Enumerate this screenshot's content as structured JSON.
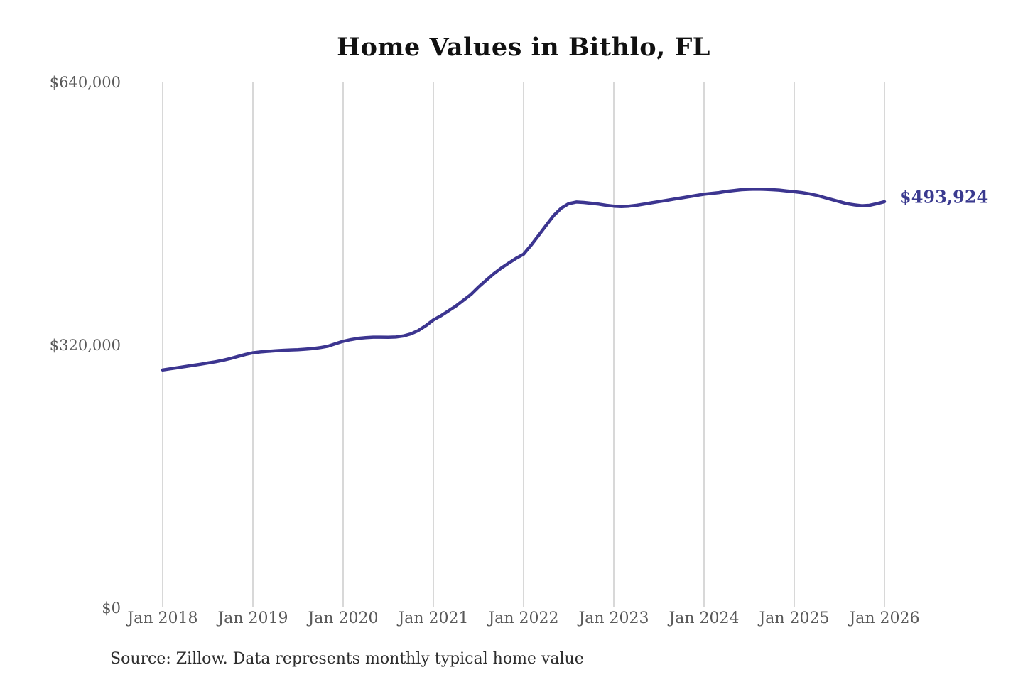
{
  "title": "Home Values in Bithlo, FL",
  "end_label": "$493,924",
  "source": "Source: Zillow. Data represents monthly typical home value",
  "y_axis": [
    "$640,000",
    "$320,000",
    "$0"
  ],
  "x_axis": [
    "Jan 2018",
    "Jan 2019",
    "Jan 2020",
    "Jan 2021",
    "Jan 2022",
    "Jan 2023",
    "Jan 2024",
    "Jan 2025",
    "Jan 2026"
  ],
  "colors": {
    "line": "#3c3590",
    "grid": "#cccccc",
    "axis_text": "#595959",
    "title_text": "#111111",
    "source_text": "#2e2e2e",
    "end_label_text": "#3a3a8f",
    "background": "#ffffff"
  },
  "chart_data": {
    "type": "line",
    "title": "Home Values in Bithlo, FL",
    "xlabel": "",
    "ylabel": "",
    "x_start": "Jan 2018",
    "x_end": "Jan 2026",
    "x_interval": "monthly",
    "ylim": [
      0,
      640000
    ],
    "yticks": [
      0,
      320000,
      640000
    ],
    "ytick_labels": [
      "$0",
      "$320,000",
      "$640,000"
    ],
    "xtick_labels": [
      "Jan 2018",
      "Jan 2019",
      "Jan 2020",
      "Jan 2021",
      "Jan 2022",
      "Jan 2023",
      "Jan 2024",
      "Jan 2025",
      "Jan 2026"
    ],
    "grid": "vertical-only",
    "legend": "none",
    "end_value": 493924,
    "end_value_label": "$493,924",
    "series": [
      {
        "name": "Typical home value",
        "values": [
          289000,
          290400,
          291800,
          293200,
          294600,
          296000,
          297500,
          299000,
          300800,
          303000,
          305500,
          308000,
          310000,
          311000,
          311800,
          312400,
          313000,
          313400,
          313800,
          314400,
          315200,
          316400,
          318000,
          321000,
          324000,
          326000,
          327500,
          328500,
          329000,
          329000,
          328800,
          329200,
          330500,
          333000,
          337000,
          343000,
          350000,
          355000,
          361000,
          367000,
          374000,
          381000,
          390000,
          398000,
          406000,
          413000,
          419000,
          425000,
          430000,
          441000,
          453000,
          465000,
          477000,
          486000,
          491500,
          493500,
          493000,
          492000,
          491000,
          489500,
          488500,
          488000,
          488500,
          489500,
          491000,
          492500,
          494000,
          495500,
          497000,
          498500,
          500000,
          501500,
          503000,
          504000,
          505000,
          506500,
          507500,
          508500,
          509000,
          509200,
          509000,
          508500,
          508000,
          507000,
          506000,
          505000,
          503500,
          501500,
          499000,
          496500,
          494000,
          491500,
          490000,
          489000,
          489500,
          491500,
          493924
        ]
      }
    ]
  }
}
